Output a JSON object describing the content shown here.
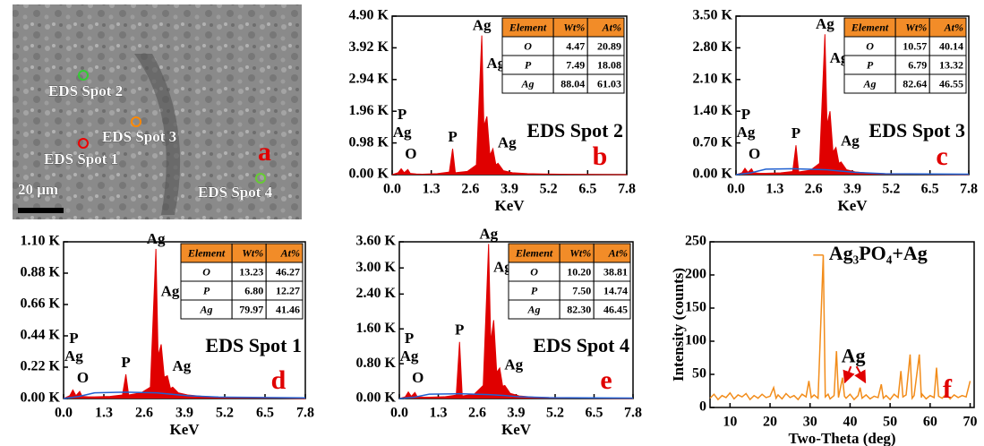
{
  "image": {
    "panel": "a",
    "spots": [
      "EDS Spot 2",
      "EDS Spot 3",
      "EDS Spot 1",
      "EDS Spot 4"
    ],
    "scale_bar": "20 μm"
  },
  "chart_data": [
    {
      "type": "spectrum",
      "panel": "b",
      "label": "EDS Spot 2",
      "xlabel": "KeV",
      "xlim": [
        0,
        7.8
      ],
      "xticks": [
        {
          "value": 0,
          "label": "0.0"
        },
        1.3,
        2.6,
        3.9,
        5.2,
        6.5,
        7.8
      ],
      "ylim": [
        0,
        4900
      ],
      "yticks": [
        {
          "value": 0,
          "label": "0.00 K"
        },
        {
          "value": 980,
          "label": "0.98 K"
        },
        {
          "value": 1960,
          "label": "1.96 K"
        },
        {
          "value": 2940,
          "label": "2.94 K"
        },
        {
          "value": 3920,
          "label": "3.92 K"
        },
        {
          "value": 4900,
          "label": "4.90 K"
        }
      ],
      "peak_labels": [
        "P",
        "Ag",
        "O",
        "P",
        "Ag",
        "Ag",
        "Ag"
      ],
      "series": [
        {
          "color": "#e00000",
          "fill": true,
          "x": [
            0,
            0.2,
            0.3,
            0.4,
            0.52,
            0.6,
            0.8,
            1.0,
            1.5,
            1.9,
            2.01,
            2.1,
            2.5,
            2.8,
            2.98,
            3.05,
            3.15,
            3.25,
            3.35,
            3.45,
            3.52,
            3.7,
            4.0,
            4.5,
            5,
            6,
            7,
            7.8
          ],
          "values": [
            0,
            60,
            180,
            60,
            160,
            40,
            20,
            15,
            30,
            80,
            800,
            60,
            100,
            300,
            4300,
            1500,
            1800,
            600,
            800,
            300,
            350,
            120,
            60,
            30,
            20,
            10,
            5,
            0
          ]
        }
      ],
      "table": {
        "header": [
          "Element",
          "Wt%",
          "At%"
        ],
        "rows": [
          [
            "O",
            "4.47",
            "20.89"
          ],
          [
            "P",
            "7.49",
            "18.08"
          ],
          [
            "Ag",
            "88.04",
            "61.03"
          ]
        ]
      }
    },
    {
      "type": "spectrum",
      "panel": "c",
      "label": "EDS Spot 3",
      "xlabel": "KeV",
      "xlim": [
        0,
        7.8
      ],
      "xticks": [
        {
          "value": 0,
          "label": "0.0"
        },
        1.3,
        2.6,
        3.9,
        5.2,
        6.5,
        7.8
      ],
      "ylim": [
        0,
        3500
      ],
      "yticks": [
        {
          "value": 0,
          "label": "0.00 K"
        },
        {
          "value": 700,
          "label": "0.70 K"
        },
        {
          "value": 1400,
          "label": "1.40 K"
        },
        {
          "value": 2100,
          "label": "2.10 K"
        },
        {
          "value": 2800,
          "label": "2.80 K"
        },
        {
          "value": 3500,
          "label": "3.50 K"
        }
      ],
      "peak_labels": [
        "P",
        "Ag",
        "O",
        "P",
        "Ag",
        "Ag",
        "Ag"
      ],
      "series": [
        {
          "color": "#e00000",
          "fill": true,
          "x": [
            0,
            0.2,
            0.3,
            0.4,
            0.52,
            0.6,
            0.8,
            1.0,
            1.5,
            1.9,
            2.01,
            2.1,
            2.5,
            2.8,
            2.98,
            3.05,
            3.15,
            3.25,
            3.35,
            3.45,
            3.52,
            3.7,
            4.0,
            4.5,
            5,
            6,
            7,
            7.8
          ],
          "values": [
            0,
            40,
            140,
            50,
            130,
            40,
            30,
            30,
            40,
            70,
            650,
            60,
            100,
            250,
            3100,
            1100,
            1400,
            500,
            600,
            250,
            280,
            110,
            60,
            30,
            20,
            10,
            5,
            0
          ]
        },
        {
          "color": "#2060d0",
          "fill": false,
          "x": [
            0,
            0.5,
            1,
            2,
            3,
            3.5,
            4,
            5,
            7.8
          ],
          "values": [
            0,
            40,
            120,
            130,
            110,
            80,
            50,
            20,
            10
          ]
        }
      ],
      "table": {
        "header": [
          "Element",
          "Wt%",
          "At%"
        ],
        "rows": [
          [
            "O",
            "10.57",
            "40.14"
          ],
          [
            "P",
            "6.79",
            "13.32"
          ],
          [
            "Ag",
            "82.64",
            "46.55"
          ]
        ]
      }
    },
    {
      "type": "spectrum",
      "panel": "d",
      "label": "EDS Spot 1",
      "xlabel": "KeV",
      "xlim": [
        0,
        7.8
      ],
      "xticks": [
        {
          "value": 0,
          "label": "0.0"
        },
        1.3,
        2.6,
        3.9,
        5.2,
        6.5,
        7.8
      ],
      "ylim": [
        0,
        1100
      ],
      "yticks": [
        {
          "value": 0,
          "label": "0.00 K"
        },
        {
          "value": 220,
          "label": "0.22 K"
        },
        {
          "value": 440,
          "label": "0.44 K"
        },
        {
          "value": 660,
          "label": "0.66 K"
        },
        {
          "value": 880,
          "label": "0.88 K"
        },
        {
          "value": 1100,
          "label": "1.10 K"
        }
      ],
      "peak_labels": [
        "P",
        "Ag",
        "O",
        "P",
        "Ag",
        "Ag",
        "Ag"
      ],
      "series": [
        {
          "color": "#e00000",
          "fill": true,
          "x": [
            0,
            0.2,
            0.3,
            0.4,
            0.52,
            0.6,
            0.8,
            1.0,
            1.5,
            1.9,
            2.01,
            2.1,
            2.5,
            2.8,
            2.98,
            3.05,
            3.15,
            3.25,
            3.35,
            3.45,
            3.52,
            3.7,
            4.0,
            4.5,
            5,
            6,
            7,
            7.8
          ],
          "values": [
            0,
            20,
            60,
            20,
            50,
            15,
            12,
            12,
            15,
            25,
            170,
            25,
            40,
            80,
            1050,
            300,
            380,
            150,
            160,
            70,
            80,
            40,
            25,
            15,
            10,
            6,
            3,
            0
          ]
        },
        {
          "color": "#2060d0",
          "fill": false,
          "x": [
            0,
            0.5,
            1,
            2,
            3,
            3.5,
            4,
            5,
            7.8
          ],
          "values": [
            0,
            15,
            40,
            45,
            40,
            30,
            20,
            10,
            5
          ]
        }
      ],
      "table": {
        "header": [
          "Element",
          "Wt%",
          "At%"
        ],
        "rows": [
          [
            "O",
            "13.23",
            "46.27"
          ],
          [
            "P",
            "6.80",
            "12.27"
          ],
          [
            "Ag",
            "79.97",
            "41.46"
          ]
        ]
      }
    },
    {
      "type": "spectrum",
      "panel": "e",
      "label": "EDS Spot 4",
      "xlabel": "KeV",
      "xlim": [
        0,
        7.8
      ],
      "xticks": [
        {
          "value": 0,
          "label": "0.0"
        },
        1.3,
        2.6,
        3.9,
        5.2,
        6.5,
        7.8
      ],
      "ylim": [
        0,
        3600
      ],
      "yticks": [
        {
          "value": 0,
          "label": "0.00 K"
        },
        {
          "value": 800,
          "label": "0.80 K"
        },
        {
          "value": 1600,
          "label": "1.60 K"
        },
        {
          "value": 2400,
          "label": "2.40 K"
        },
        {
          "value": 3000,
          "label": "3.00 K"
        },
        {
          "value": 3600,
          "label": "3.60 K"
        }
      ],
      "peak_labels": [
        "P",
        "Ag",
        "O",
        "P",
        "Ag",
        "Ag",
        "Ag"
      ],
      "series": [
        {
          "color": "#e00000",
          "fill": true,
          "x": [
            0,
            0.2,
            0.3,
            0.4,
            0.52,
            0.6,
            0.8,
            1.0,
            1.5,
            1.9,
            2.01,
            2.1,
            2.5,
            2.8,
            2.98,
            3.05,
            3.15,
            3.25,
            3.35,
            3.45,
            3.52,
            3.7,
            4.0,
            4.5,
            5,
            6,
            7,
            7.8
          ],
          "values": [
            0,
            40,
            150,
            50,
            140,
            40,
            30,
            30,
            40,
            80,
            1300,
            60,
            100,
            300,
            3550,
            1300,
            1800,
            600,
            700,
            280,
            300,
            120,
            60,
            30,
            20,
            10,
            5,
            0
          ]
        },
        {
          "color": "#2060d0",
          "fill": false,
          "x": [
            0,
            0.5,
            1,
            2,
            3,
            3.5,
            4,
            5,
            7.8
          ],
          "values": [
            0,
            30,
            100,
            110,
            90,
            70,
            40,
            20,
            10
          ]
        }
      ],
      "table": {
        "header": [
          "Element",
          "Wt%",
          "At%"
        ],
        "rows": [
          [
            "O",
            "10.20",
            "38.81"
          ],
          [
            "P",
            "7.50",
            "14.74"
          ],
          [
            "Ag",
            "82.30",
            "46.45"
          ]
        ]
      }
    },
    {
      "type": "line",
      "panel": "f",
      "xlabel": "Two-Theta (deg)",
      "ylabel": "Intensity (counts)",
      "xlim": [
        5,
        71
      ],
      "xticks": [
        10,
        20,
        30,
        40,
        50,
        60,
        70
      ],
      "ylim": [
        0,
        250
      ],
      "yticks": [
        0,
        50,
        100,
        150,
        200,
        250
      ],
      "annotation": "Ag",
      "series": [
        {
          "name": "Ag₃PO₄+Ag",
          "color": "#f28c1a",
          "x": [
            5,
            6,
            7,
            8,
            9,
            10,
            11,
            12,
            13,
            14,
            15,
            16,
            17,
            18,
            19,
            20,
            20.9,
            21.5,
            22,
            23,
            24,
            25,
            26,
            27,
            28,
            29,
            29.7,
            30.3,
            31,
            32,
            33.3,
            33.8,
            34.5,
            35,
            36,
            36.6,
            37.1,
            38.1,
            38.6,
            39,
            40,
            41,
            42,
            42.5,
            43,
            44,
            45,
            46,
            47,
            47.8,
            48.3,
            49,
            50,
            51,
            52,
            52.7,
            53.2,
            54,
            55,
            55.5,
            56,
            57.3,
            57.8,
            58,
            59,
            60,
            61,
            61.6,
            62.1,
            63,
            64,
            65,
            66,
            67,
            68,
            69,
            70
          ],
          "values": [
            14,
            20,
            12,
            18,
            15,
            22,
            13,
            19,
            16,
            21,
            12,
            18,
            14,
            20,
            15,
            17,
            30,
            14,
            19,
            13,
            21,
            15,
            18,
            12,
            20,
            16,
            40,
            15,
            19,
            14,
            230,
            16,
            20,
            13,
            18,
            85,
            15,
            45,
            17,
            14,
            20,
            12,
            18,
            30,
            14,
            19,
            13,
            17,
            15,
            35,
            14,
            18,
            12,
            20,
            15,
            55,
            16,
            19,
            80,
            14,
            18,
            80,
            15,
            20,
            13,
            18,
            15,
            60,
            17,
            14,
            20,
            13,
            19,
            15,
            18,
            16,
            40
          ]
        }
      ]
    }
  ]
}
